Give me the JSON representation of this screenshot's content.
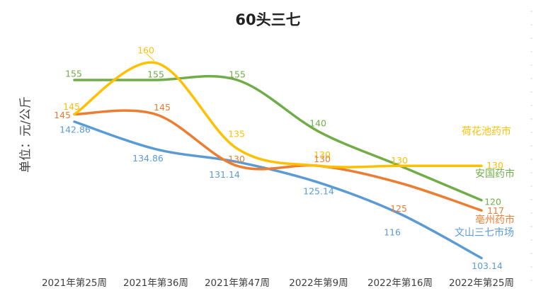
{
  "chart_data": {
    "type": "line",
    "title": "60头三七",
    "xlabel": "",
    "ylabel": "单位：元/公斤",
    "categories": [
      "2021年第25周",
      "2021年第36周",
      "2021年第47周",
      "2022年第9周",
      "2022年第16周",
      "2022年第25周"
    ],
    "ylim": [
      95,
      170
    ],
    "grid": false,
    "legend": "right, labels at line ends",
    "series": [
      {
        "name": "荷花池药市",
        "color": "#FFC000",
        "values": [
          145,
          160,
          135,
          130,
          130,
          130
        ],
        "labels": [
          "145",
          "160",
          "135",
          "130",
          "130",
          "130"
        ]
      },
      {
        "name": "安国药市",
        "color": "#70AD47",
        "values": [
          155,
          155,
          155,
          140,
          130,
          120
        ],
        "labels": [
          "155",
          "155",
          "155",
          "140",
          "",
          "120"
        ]
      },
      {
        "name": "亳州药市",
        "color": "#ED7D31",
        "values": [
          145,
          145,
          130,
          130,
          125,
          117
        ],
        "labels": [
          "145",
          "145",
          "130",
          "130",
          "125",
          "117"
        ]
      },
      {
        "name": "文山三七市场",
        "color": "#5B9BD5",
        "values": [
          142.86,
          134.86,
          131.14,
          125.14,
          116,
          103.14
        ],
        "labels": [
          "142.86",
          "134.86",
          "131.14",
          "125.14",
          "116",
          "103.14"
        ]
      }
    ]
  }
}
